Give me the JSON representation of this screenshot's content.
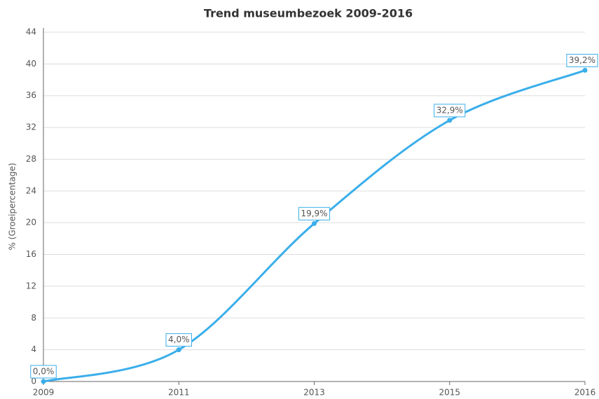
{
  "chart_data": {
    "type": "line",
    "title": "Trend museumbezoek 2009-2016",
    "y_label": "% (Groeipercentage)",
    "categories": [
      "2009",
      "2011",
      "2013",
      "2015",
      "2016"
    ],
    "series": [
      {
        "name": "Groeipercentage",
        "color": "#3aaeea",
        "values": [
          0,
          4,
          19.9,
          32.9,
          39.2
        ],
        "value_labels": [
          "0,0%",
          "4,0%",
          "19,9%",
          "32,9%",
          "39,2%"
        ]
      }
    ],
    "ylim": [
      0,
      44
    ],
    "yticks": [
      0,
      4,
      8,
      12,
      16,
      20,
      24,
      28,
      32,
      36,
      40,
      44
    ],
    "grid": true
  }
}
